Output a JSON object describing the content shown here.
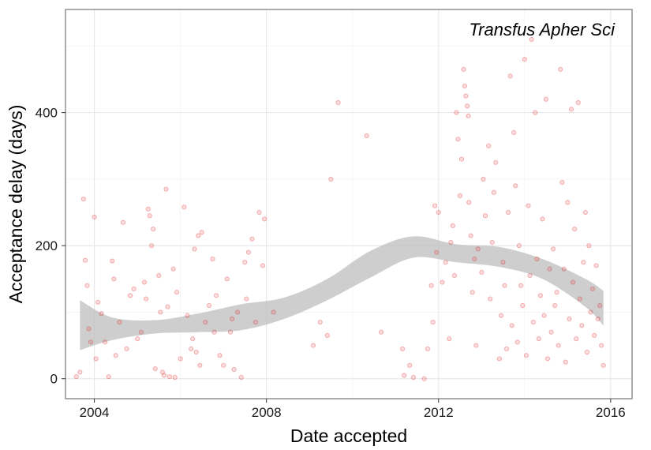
{
  "chart_data": {
    "type": "scatter",
    "title": "",
    "annotation": "Transfus Apher Sci",
    "xlabel": "Date accepted",
    "ylabel": "Acceptance delay (days)",
    "xlim": [
      "2003-05-01",
      "2016-07-01"
    ],
    "ylim": [
      -30,
      555
    ],
    "x_ticks": [
      "2004",
      "2008",
      "2012",
      "2016"
    ],
    "y_ticks": [
      0,
      200,
      400
    ],
    "grid": true,
    "legend": "none",
    "point_color": "#e41a1c",
    "ribbon_color": "#bdbdbd",
    "smooth": {
      "x": [
        "2003-09-01",
        "2004-06-01",
        "2005-06-01",
        "2006-06-01",
        "2007-06-01",
        "2008-06-01",
        "2009-06-01",
        "2010-06-01",
        "2011-06-01",
        "2012-06-01",
        "2013-06-01",
        "2014-06-01",
        "2015-06-01",
        "2015-11-01"
      ],
      "lower": [
        43,
        58,
        68,
        70,
        73,
        90,
        118,
        152,
        182,
        175,
        168,
        150,
        108,
        80
      ],
      "upper": [
        118,
        92,
        88,
        98,
        112,
        122,
        150,
        192,
        214,
        202,
        198,
        180,
        150,
        132
      ]
    },
    "points": [
      {
        "x": "2003-08-01",
        "y": 3
      },
      {
        "x": "2003-09-01",
        "y": 10
      },
      {
        "x": "2003-10-01",
        "y": 270
      },
      {
        "x": "2003-10-15",
        "y": 178
      },
      {
        "x": "2003-11-01",
        "y": 140
      },
      {
        "x": "2003-11-15",
        "y": 75
      },
      {
        "x": "2003-12-01",
        "y": 55
      },
      {
        "x": "2004-01-01",
        "y": 243
      },
      {
        "x": "2004-01-15",
        "y": 30
      },
      {
        "x": "2004-02-01",
        "y": 115
      },
      {
        "x": "2004-03-01",
        "y": 98
      },
      {
        "x": "2004-04-01",
        "y": 55
      },
      {
        "x": "2004-05-01",
        "y": 3
      },
      {
        "x": "2004-06-01",
        "y": 177
      },
      {
        "x": "2004-06-15",
        "y": 150
      },
      {
        "x": "2004-07-01",
        "y": 35
      },
      {
        "x": "2004-08-01",
        "y": 85
      },
      {
        "x": "2004-09-01",
        "y": 235
      },
      {
        "x": "2004-10-01",
        "y": 45
      },
      {
        "x": "2004-11-01",
        "y": 125
      },
      {
        "x": "2004-12-01",
        "y": 135
      },
      {
        "x": "2005-01-01",
        "y": 60
      },
      {
        "x": "2005-02-01",
        "y": 70
      },
      {
        "x": "2005-03-01",
        "y": 145
      },
      {
        "x": "2005-03-15",
        "y": 120
      },
      {
        "x": "2005-04-01",
        "y": 255
      },
      {
        "x": "2005-04-15",
        "y": 245
      },
      {
        "x": "2005-05-01",
        "y": 200
      },
      {
        "x": "2005-05-15",
        "y": 225
      },
      {
        "x": "2005-06-01",
        "y": 15
      },
      {
        "x": "2005-07-01",
        "y": 155
      },
      {
        "x": "2005-07-15",
        "y": 100
      },
      {
        "x": "2005-08-01",
        "y": 10
      },
      {
        "x": "2005-08-15",
        "y": 5
      },
      {
        "x": "2005-09-01",
        "y": 285
      },
      {
        "x": "2005-09-15",
        "y": 108
      },
      {
        "x": "2005-10-01",
        "y": 3
      },
      {
        "x": "2005-11-01",
        "y": 165
      },
      {
        "x": "2005-11-15",
        "y": 2
      },
      {
        "x": "2005-12-01",
        "y": 130
      },
      {
        "x": "2006-01-01",
        "y": 30
      },
      {
        "x": "2006-02-01",
        "y": 258
      },
      {
        "x": "2006-03-01",
        "y": 95
      },
      {
        "x": "2006-04-01",
        "y": 45
      },
      {
        "x": "2006-04-15",
        "y": 60
      },
      {
        "x": "2006-05-01",
        "y": 195
      },
      {
        "x": "2006-05-15",
        "y": 40
      },
      {
        "x": "2006-06-01",
        "y": 215
      },
      {
        "x": "2006-06-15",
        "y": 20
      },
      {
        "x": "2006-07-01",
        "y": 220
      },
      {
        "x": "2006-08-01",
        "y": 85
      },
      {
        "x": "2006-09-01",
        "y": 110
      },
      {
        "x": "2006-10-01",
        "y": 180
      },
      {
        "x": "2006-10-15",
        "y": 70
      },
      {
        "x": "2006-11-01",
        "y": 125
      },
      {
        "x": "2006-12-01",
        "y": 35
      },
      {
        "x": "2007-01-01",
        "y": 20
      },
      {
        "x": "2007-02-01",
        "y": 150
      },
      {
        "x": "2007-03-01",
        "y": 70
      },
      {
        "x": "2007-03-15",
        "y": 90
      },
      {
        "x": "2007-04-01",
        "y": 14
      },
      {
        "x": "2007-05-01",
        "y": 100
      },
      {
        "x": "2007-06-01",
        "y": 2
      },
      {
        "x": "2007-07-01",
        "y": 175
      },
      {
        "x": "2007-07-15",
        "y": 120
      },
      {
        "x": "2007-08-01",
        "y": 190
      },
      {
        "x": "2007-09-01",
        "y": 210
      },
      {
        "x": "2007-10-01",
        "y": 85
      },
      {
        "x": "2007-11-01",
        "y": 250
      },
      {
        "x": "2007-12-01",
        "y": 170
      },
      {
        "x": "2007-12-15",
        "y": 240
      },
      {
        "x": "2008-03-01",
        "y": 100
      },
      {
        "x": "2009-02-01",
        "y": 50
      },
      {
        "x": "2009-04-01",
        "y": 85
      },
      {
        "x": "2009-06-01",
        "y": 65
      },
      {
        "x": "2009-07-01",
        "y": 300
      },
      {
        "x": "2009-09-01",
        "y": 415
      },
      {
        "x": "2010-05-01",
        "y": 365
      },
      {
        "x": "2010-09-01",
        "y": 70
      },
      {
        "x": "2011-03-01",
        "y": 45
      },
      {
        "x": "2011-03-15",
        "y": 5
      },
      {
        "x": "2011-05-01",
        "y": 20
      },
      {
        "x": "2011-06-01",
        "y": 2
      },
      {
        "x": "2011-09-01",
        "y": 0
      },
      {
        "x": "2011-10-01",
        "y": 45
      },
      {
        "x": "2011-11-01",
        "y": 140
      },
      {
        "x": "2011-11-15",
        "y": 85
      },
      {
        "x": "2011-12-01",
        "y": 260
      },
      {
        "x": "2011-12-15",
        "y": 190
      },
      {
        "x": "2012-01-01",
        "y": 250
      },
      {
        "x": "2012-02-01",
        "y": 145
      },
      {
        "x": "2012-03-01",
        "y": 175
      },
      {
        "x": "2012-04-01",
        "y": 60
      },
      {
        "x": "2012-04-15",
        "y": 205
      },
      {
        "x": "2012-05-01",
        "y": 230
      },
      {
        "x": "2012-05-15",
        "y": 155
      },
      {
        "x": "2012-06-01",
        "y": 400
      },
      {
        "x": "2012-06-15",
        "y": 360
      },
      {
        "x": "2012-07-01",
        "y": 275
      },
      {
        "x": "2012-07-15",
        "y": 330
      },
      {
        "x": "2012-08-01",
        "y": 465
      },
      {
        "x": "2012-08-10",
        "y": 440
      },
      {
        "x": "2012-08-20",
        "y": 425
      },
      {
        "x": "2012-09-01",
        "y": 410
      },
      {
        "x": "2012-09-10",
        "y": 395
      },
      {
        "x": "2012-09-15",
        "y": 265
      },
      {
        "x": "2012-10-01",
        "y": 215
      },
      {
        "x": "2012-10-15",
        "y": 130
      },
      {
        "x": "2012-11-01",
        "y": 180
      },
      {
        "x": "2012-11-15",
        "y": 50
      },
      {
        "x": "2012-12-01",
        "y": 195
      },
      {
        "x": "2013-01-01",
        "y": 160
      },
      {
        "x": "2013-01-15",
        "y": 300
      },
      {
        "x": "2013-02-01",
        "y": 245
      },
      {
        "x": "2013-03-01",
        "y": 350
      },
      {
        "x": "2013-03-15",
        "y": 120
      },
      {
        "x": "2013-04-01",
        "y": 205
      },
      {
        "x": "2013-04-15",
        "y": 280
      },
      {
        "x": "2013-05-01",
        "y": 325
      },
      {
        "x": "2013-06-01",
        "y": 30
      },
      {
        "x": "2013-06-15",
        "y": 95
      },
      {
        "x": "2013-07-01",
        "y": 175
      },
      {
        "x": "2013-07-15",
        "y": 140
      },
      {
        "x": "2013-08-01",
        "y": 45
      },
      {
        "x": "2013-08-15",
        "y": 250
      },
      {
        "x": "2013-09-01",
        "y": 455
      },
      {
        "x": "2013-09-15",
        "y": 80
      },
      {
        "x": "2013-10-01",
        "y": 370
      },
      {
        "x": "2013-10-15",
        "y": 290
      },
      {
        "x": "2013-11-01",
        "y": 55
      },
      {
        "x": "2013-11-15",
        "y": 200
      },
      {
        "x": "2013-12-01",
        "y": 140
      },
      {
        "x": "2013-12-15",
        "y": 110
      },
      {
        "x": "2014-01-01",
        "y": 480
      },
      {
        "x": "2014-01-15",
        "y": 35
      },
      {
        "x": "2014-02-01",
        "y": 260
      },
      {
        "x": "2014-02-15",
        "y": 155
      },
      {
        "x": "2014-03-01",
        "y": 510
      },
      {
        "x": "2014-03-15",
        "y": 85
      },
      {
        "x": "2014-04-01",
        "y": 400
      },
      {
        "x": "2014-04-15",
        "y": 180
      },
      {
        "x": "2014-05-01",
        "y": 60
      },
      {
        "x": "2014-05-15",
        "y": 125
      },
      {
        "x": "2014-06-01",
        "y": 240
      },
      {
        "x": "2014-06-15",
        "y": 95
      },
      {
        "x": "2014-07-01",
        "y": 420
      },
      {
        "x": "2014-07-15",
        "y": 30
      },
      {
        "x": "2014-08-01",
        "y": 165
      },
      {
        "x": "2014-08-15",
        "y": 70
      },
      {
        "x": "2014-09-01",
        "y": 195
      },
      {
        "x": "2014-09-15",
        "y": 110
      },
      {
        "x": "2014-10-01",
        "y": 130
      },
      {
        "x": "2014-10-15",
        "y": 50
      },
      {
        "x": "2014-11-01",
        "y": 465
      },
      {
        "x": "2014-11-15",
        "y": 295
      },
      {
        "x": "2014-12-01",
        "y": 165
      },
      {
        "x": "2014-12-15",
        "y": 25
      },
      {
        "x": "2015-01-01",
        "y": 265
      },
      {
        "x": "2015-01-15",
        "y": 90
      },
      {
        "x": "2015-02-01",
        "y": 405
      },
      {
        "x": "2015-02-15",
        "y": 145
      },
      {
        "x": "2015-03-01",
        "y": 225
      },
      {
        "x": "2015-03-15",
        "y": 60
      },
      {
        "x": "2015-04-01",
        "y": 415
      },
      {
        "x": "2015-04-15",
        "y": 120
      },
      {
        "x": "2015-05-01",
        "y": 80
      },
      {
        "x": "2015-05-15",
        "y": 175
      },
      {
        "x": "2015-06-01",
        "y": 250
      },
      {
        "x": "2015-06-15",
        "y": 40
      },
      {
        "x": "2015-07-01",
        "y": 200
      },
      {
        "x": "2015-07-15",
        "y": 100
      },
      {
        "x": "2015-08-01",
        "y": 135
      },
      {
        "x": "2015-08-15",
        "y": 65
      },
      {
        "x": "2015-09-01",
        "y": 170
      },
      {
        "x": "2015-09-15",
        "y": 90
      },
      {
        "x": "2015-10-01",
        "y": 110
      },
      {
        "x": "2015-10-15",
        "y": 50
      },
      {
        "x": "2015-11-01",
        "y": 20
      }
    ]
  }
}
